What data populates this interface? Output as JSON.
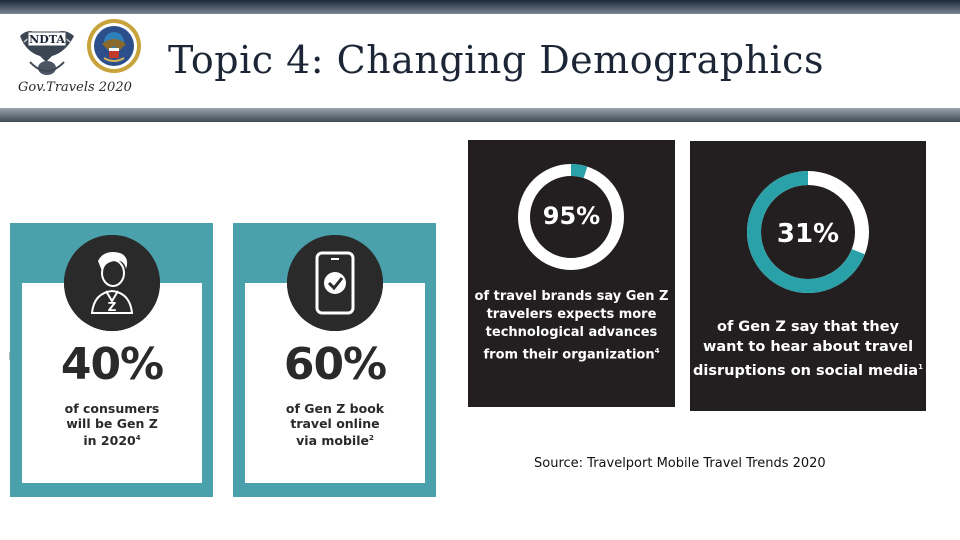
{
  "header": {
    "title": "Topic 4: Changing Demographics",
    "caption": "Gov.Travels 2020",
    "logos": [
      "ndta-eagle-logo",
      "dod-seal-logo"
    ],
    "ndta_text": "NDTA"
  },
  "cards": [
    {
      "icon": "person-z-icon",
      "percent": "40%",
      "lines": [
        "of consumers",
        "will be Gen Z",
        "in 2020"
      ],
      "footnote": "4"
    },
    {
      "icon": "phone-check-icon",
      "percent": "60%",
      "lines": [
        "of Gen Z book",
        "travel online",
        "via mobile"
      ],
      "footnote": "2"
    }
  ],
  "dark_stats": [
    {
      "percent": "95%",
      "fill": 0.95,
      "lines": [
        "of travel brands say Gen Z",
        "travelers expects more",
        "technological advances",
        "from their organization"
      ],
      "footnote": "4"
    },
    {
      "percent": "31%",
      "fill": 0.31,
      "lines": [
        "of Gen Z say that they",
        "want to hear about travel",
        "disruptions on social media"
      ],
      "footnote": "1"
    }
  ],
  "source": "Source: Travelport Mobile Travel Trends 2020",
  "colors": {
    "teal": "#4aa0ab",
    "dark": "#231f20",
    "ring_bg": "#ffffff",
    "ring_fill": "#2aa0a8"
  }
}
